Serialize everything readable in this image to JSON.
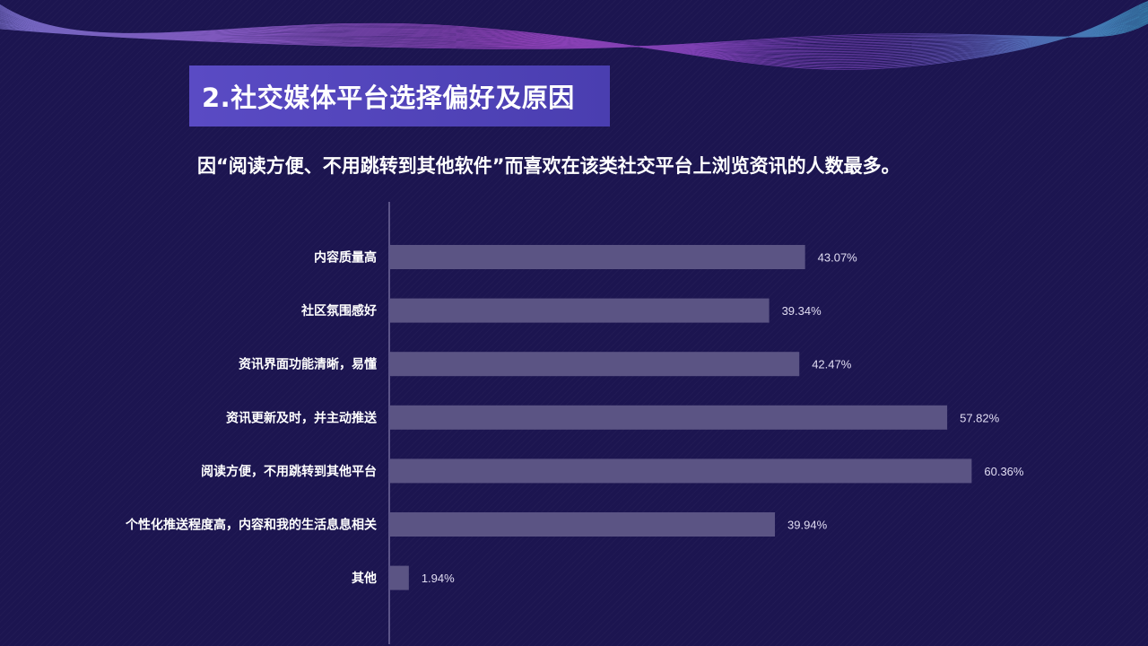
{
  "header": {
    "title": "2.社交媒体平台选择偏好及原因",
    "subtitle": "因“阅读方便、不用跳转到其他软件”而喜欢在该类社交平台上浏览资讯的人数最多。"
  },
  "colors": {
    "background": "#1c1550",
    "title_box": "#5a4bc4",
    "bar": "#5b5484",
    "axis": "#9a94c0"
  },
  "chart_data": {
    "type": "bar",
    "orientation": "horizontal",
    "categories": [
      "内容质量高",
      "社区氛围感好",
      "资讯界面功能清晰，易懂",
      "资讯更新及时，并主动推送",
      "阅读方便，不用跳转到其他平台",
      "个性化推送程度高，内容和我的生活息息相关",
      "其他"
    ],
    "values": [
      43.07,
      39.34,
      42.47,
      57.82,
      60.36,
      39.94,
      1.94
    ],
    "value_labels": [
      "43.07%",
      "39.34%",
      "42.47%",
      "57.82%",
      "60.36%",
      "39.94%",
      "1.94%"
    ],
    "xlim": [
      0,
      70
    ],
    "grid": false,
    "legend": "none"
  }
}
